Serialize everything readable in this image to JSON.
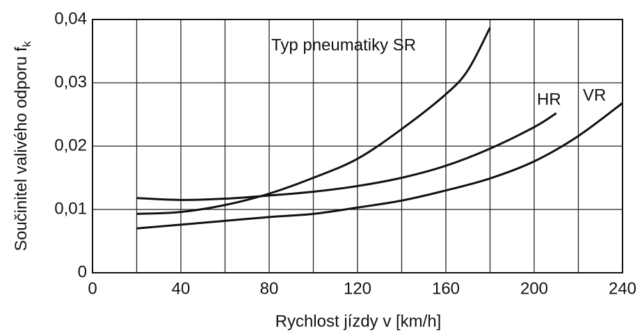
{
  "chart_data": {
    "type": "line",
    "xlabel": "Rychlost jízdy v [km/h]",
    "ylabel": "Součinitel valivého odporu f",
    "ylabel_subscript": "k",
    "xlim": [
      0,
      240
    ],
    "xticks": [
      0,
      40,
      80,
      120,
      160,
      200,
      240
    ],
    "x_minor_ticks": [
      20,
      60,
      100,
      140,
      180,
      220
    ],
    "ylim": [
      0,
      0.04
    ],
    "yticks": [
      {
        "value": 0,
        "label": "0"
      },
      {
        "value": 0.01,
        "label": "0,01"
      },
      {
        "value": 0.02,
        "label": "0,02"
      },
      {
        "value": 0.03,
        "label": "0,03"
      },
      {
        "value": 0.04,
        "label": "0,04"
      }
    ],
    "grid": true,
    "series": [
      {
        "name": "Typ pneumatiky SR",
        "color": "#111111",
        "x": [
          20,
          40,
          60,
          80,
          100,
          120,
          140,
          160,
          170,
          180
        ],
        "values": [
          0.0093,
          0.0096,
          0.0107,
          0.0125,
          0.015,
          0.018,
          0.0227,
          0.0282,
          0.032,
          0.0387
        ]
      },
      {
        "name": "HR",
        "color": "#111111",
        "x": [
          20,
          40,
          60,
          80,
          100,
          120,
          140,
          160,
          180,
          200,
          210
        ],
        "values": [
          0.0118,
          0.0115,
          0.0117,
          0.0122,
          0.0128,
          0.0137,
          0.015,
          0.0169,
          0.0196,
          0.023,
          0.0252
        ]
      },
      {
        "name": "VR",
        "color": "#111111",
        "x": [
          20,
          40,
          60,
          80,
          100,
          120,
          140,
          160,
          180,
          200,
          220,
          240
        ],
        "values": [
          0.007,
          0.0076,
          0.0082,
          0.0088,
          0.0093,
          0.0103,
          0.0114,
          0.013,
          0.0149,
          0.0176,
          0.0216,
          0.0268
        ]
      }
    ]
  }
}
